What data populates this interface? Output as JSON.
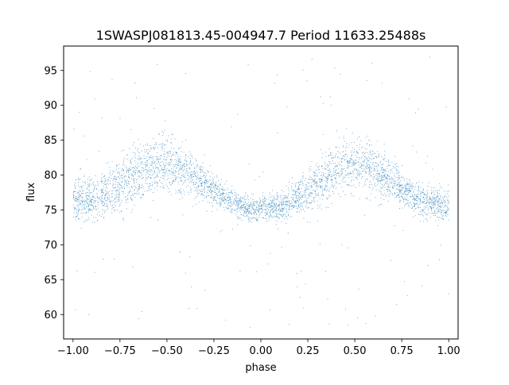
{
  "chart_data": {
    "type": "scatter",
    "title": "1SWASPJ081813.45-004947.7 Period 11633.25488s",
    "xlabel": "phase",
    "ylabel": "flux",
    "xlim": [
      -1.05,
      1.05
    ],
    "ylim": [
      56.5,
      98.5
    ],
    "xticks": [
      -1.0,
      -0.75,
      -0.5,
      -0.25,
      0.0,
      0.25,
      0.5,
      0.75,
      1.0
    ],
    "xtick_labels": [
      "−1.00",
      "−0.75",
      "−0.50",
      "−0.25",
      "0.00",
      "0.25",
      "0.50",
      "0.75",
      "1.00"
    ],
    "yticks": [
      60,
      65,
      70,
      75,
      80,
      85,
      90,
      95
    ],
    "ytick_labels": [
      "60",
      "65",
      "70",
      "75",
      "80",
      "85",
      "90",
      "95"
    ],
    "grid": false,
    "marker_color": "#1f77b4",
    "series": [
      {
        "description_of_trend": "two-cycle sinusoid over phase -1 to 1",
        "x": [
          -1.0,
          -0.9,
          -0.8,
          -0.7,
          -0.6,
          -0.5,
          -0.4,
          -0.3,
          -0.2,
          -0.1,
          0.0,
          0.1,
          0.2,
          0.3,
          0.4,
          0.5,
          0.6,
          0.7,
          0.8,
          0.9,
          1.0
        ],
        "y_upper_band": [
          79.0,
          79.5,
          81.0,
          83.0,
          84.5,
          85.0,
          83.5,
          81.0,
          78.5,
          77.0,
          76.5,
          77.0,
          79.0,
          82.0,
          84.5,
          85.0,
          84.0,
          81.5,
          79.0,
          78.0,
          77.5
        ],
        "y_lower_band": [
          73.5,
          73.5,
          74.5,
          76.0,
          77.5,
          78.0,
          77.5,
          76.5,
          75.0,
          74.0,
          73.5,
          73.5,
          74.5,
          76.0,
          77.5,
          78.0,
          77.5,
          76.5,
          75.0,
          74.0,
          73.5
        ]
      }
    ]
  }
}
